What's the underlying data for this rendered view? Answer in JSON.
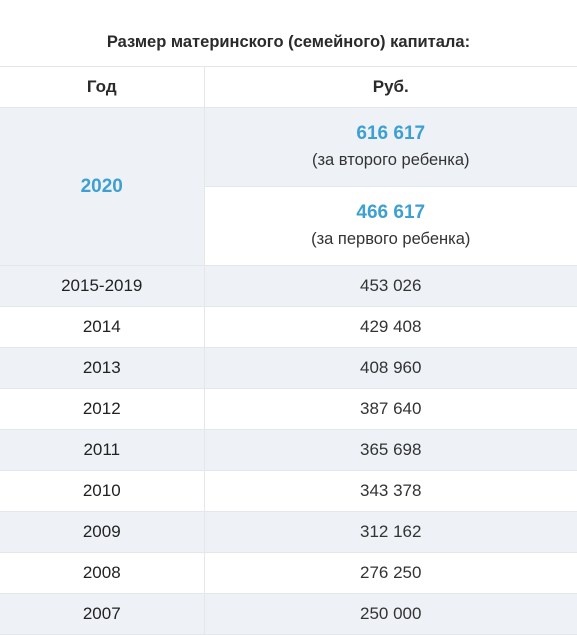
{
  "title": "Размер материнского (семейного) капитала:",
  "headers": {
    "year": "Год",
    "amount": "Руб."
  },
  "current": {
    "year": "2020",
    "second_child_amount": "616 617",
    "second_child_note": "(за второго ребенка)",
    "first_child_amount": "466 617",
    "first_child_note": "(за первого ребенка)"
  },
  "rows": [
    {
      "year": "2015-2019",
      "amount": "453 026"
    },
    {
      "year": "2014",
      "amount": "429 408"
    },
    {
      "year": "2013",
      "amount": "408 960"
    },
    {
      "year": "2012",
      "amount": "387 640"
    },
    {
      "year": "2011",
      "amount": "365 698"
    },
    {
      "year": "2010",
      "amount": "343 378"
    },
    {
      "year": "2009",
      "amount": "312 162"
    },
    {
      "year": "2008",
      "amount": "276 250"
    },
    {
      "year": "2007",
      "amount": "250 000"
    }
  ],
  "colors": {
    "accent": "#3e9fd1",
    "shade": "#eef2f7",
    "border": "#e3e6ea"
  }
}
